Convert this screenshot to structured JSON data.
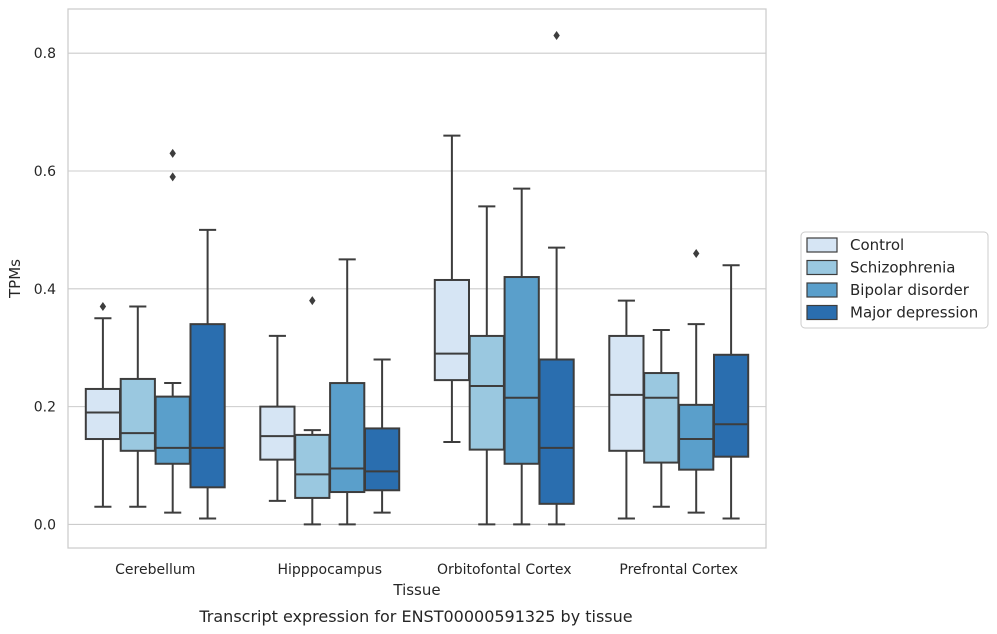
{
  "chart_data": {
    "type": "box",
    "caption": "Transcript expression for ENST00000591325 by tissue",
    "xlabel": "Tissue",
    "ylabel": "TPMs",
    "ylim": [
      -0.04,
      0.875
    ],
    "yticks": [
      0.0,
      0.2,
      0.4,
      0.6,
      0.8
    ],
    "ytick_labels": [
      "0.0",
      "0.2",
      "0.4",
      "0.6",
      "0.8"
    ],
    "grid": "horizontal",
    "legend_position": "right",
    "categories": [
      "Cerebellum",
      "Hipppocampus",
      "Orbitofontal Cortex",
      "Prefrontal Cortex"
    ],
    "series": [
      {
        "name": "Control",
        "color": "#d6e5f4",
        "boxes": [
          {
            "whislo": 0.03,
            "q1": 0.145,
            "med": 0.19,
            "q3": 0.23,
            "whishi": 0.35,
            "fliers": [
              0.37
            ]
          },
          {
            "whislo": 0.04,
            "q1": 0.11,
            "med": 0.15,
            "q3": 0.2,
            "whishi": 0.32,
            "fliers": []
          },
          {
            "whislo": 0.14,
            "q1": 0.245,
            "med": 0.29,
            "q3": 0.415,
            "whishi": 0.66,
            "fliers": []
          },
          {
            "whislo": 0.01,
            "q1": 0.125,
            "med": 0.22,
            "q3": 0.32,
            "whishi": 0.38,
            "fliers": []
          }
        ]
      },
      {
        "name": "Schizophrenia",
        "color": "#9ac8e0",
        "boxes": [
          {
            "whislo": 0.03,
            "q1": 0.125,
            "med": 0.155,
            "q3": 0.247,
            "whishi": 0.37,
            "fliers": []
          },
          {
            "whislo": 0.0,
            "q1": 0.045,
            "med": 0.085,
            "q3": 0.152,
            "whishi": 0.16,
            "fliers": [
              0.38
            ]
          },
          {
            "whislo": 0.0,
            "q1": 0.127,
            "med": 0.235,
            "q3": 0.32,
            "whishi": 0.54,
            "fliers": []
          },
          {
            "whislo": 0.03,
            "q1": 0.105,
            "med": 0.215,
            "q3": 0.257,
            "whishi": 0.33,
            "fliers": []
          }
        ]
      },
      {
        "name": "Bipolar disorder",
        "color": "#5a9fcb",
        "boxes": [
          {
            "whislo": 0.02,
            "q1": 0.103,
            "med": 0.13,
            "q3": 0.217,
            "whishi": 0.24,
            "fliers": [
              0.59,
              0.63
            ]
          },
          {
            "whislo": 0.0,
            "q1": 0.055,
            "med": 0.095,
            "q3": 0.24,
            "whishi": 0.45,
            "fliers": []
          },
          {
            "whislo": 0.0,
            "q1": 0.103,
            "med": 0.215,
            "q3": 0.42,
            "whishi": 0.57,
            "fliers": []
          },
          {
            "whislo": 0.02,
            "q1": 0.093,
            "med": 0.145,
            "q3": 0.203,
            "whishi": 0.34,
            "fliers": [
              0.46
            ]
          }
        ]
      },
      {
        "name": "Major depression",
        "color": "#2a6eaf",
        "boxes": [
          {
            "whislo": 0.01,
            "q1": 0.063,
            "med": 0.13,
            "q3": 0.34,
            "whishi": 0.5,
            "fliers": []
          },
          {
            "whislo": 0.02,
            "q1": 0.058,
            "med": 0.09,
            "q3": 0.163,
            "whishi": 0.28,
            "fliers": []
          },
          {
            "whislo": 0.0,
            "q1": 0.035,
            "med": 0.13,
            "q3": 0.28,
            "whishi": 0.47,
            "fliers": [
              0.83
            ]
          },
          {
            "whislo": 0.01,
            "q1": 0.115,
            "med": 0.17,
            "q3": 0.288,
            "whishi": 0.44,
            "fliers": []
          }
        ]
      }
    ]
  }
}
